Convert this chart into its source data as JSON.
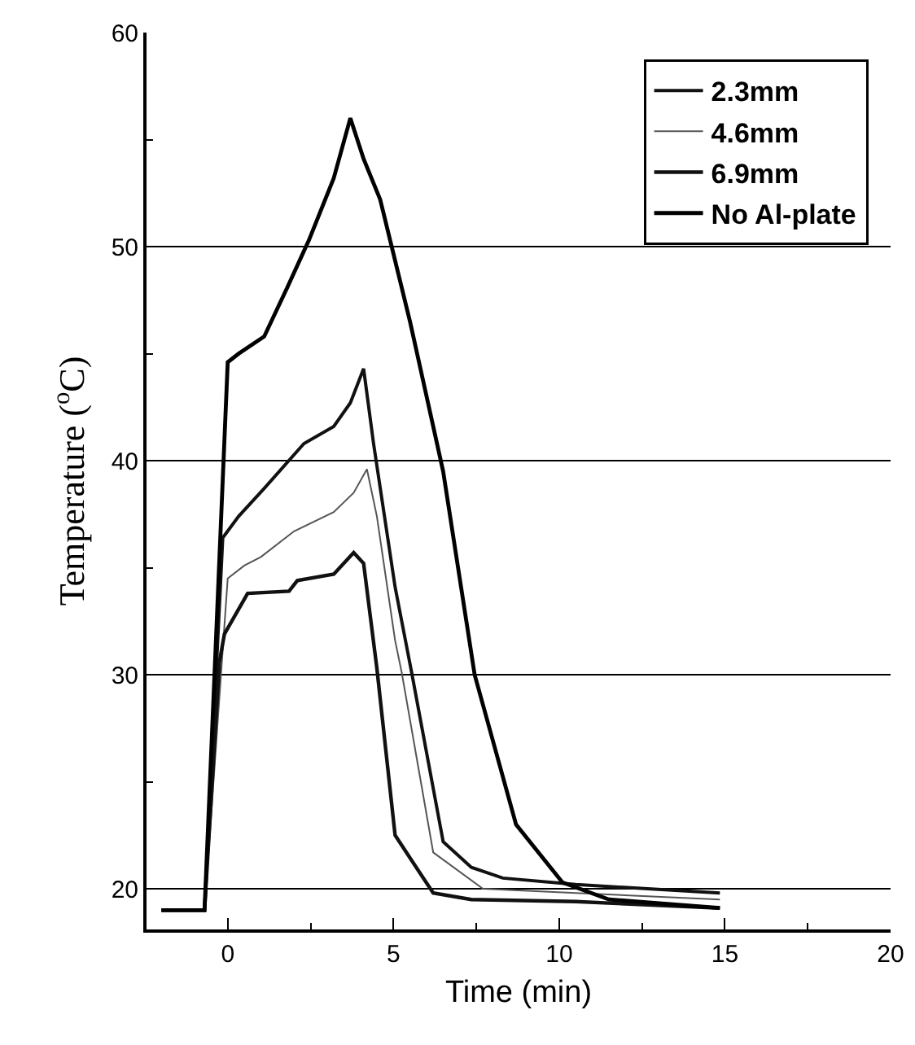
{
  "chart_data": {
    "type": "line",
    "xlabel": "Time (min)",
    "ylabel": "Temperature ($^{o}$C)",
    "xlim": [
      -2.45,
      20
    ],
    "xticks": [
      0,
      5,
      10,
      15,
      20
    ],
    "ylim": [
      18.1,
      60
    ],
    "yticks": [
      20,
      30,
      40,
      50,
      60
    ],
    "grid": "y",
    "legend": "top right",
    "marker": "none",
    "line_style": "solid",
    "series": [
      {
        "name": "2.3mm",
        "color": "#111111",
        "x": [
          -2,
          -0.7,
          -0.15,
          0.33,
          1.1,
          2.3,
          3.2,
          3.7,
          4.1,
          4.4,
          5.05,
          5.55,
          6.5,
          7.35,
          8.3,
          10.5,
          14.85
        ],
        "values": [
          19,
          19,
          36.4,
          37.4,
          38.7,
          40.8,
          41.6,
          42.7,
          44.3,
          40.8,
          34.1,
          30.1,
          22.2,
          21,
          20.5,
          20.2,
          19.8
        ]
      },
      {
        "name": "4.6mm",
        "color": "#555555",
        "x": [
          -2,
          -0.7,
          0,
          0.5,
          1,
          2,
          3.2,
          3.8,
          4.2,
          4.5,
          5.05,
          5.25,
          6.2,
          7.7,
          10.5,
          14.85
        ],
        "values": [
          19,
          19,
          34.5,
          35.1,
          35.5,
          36.7,
          37.6,
          38.5,
          39.6,
          37.4,
          31.6,
          30.1,
          21.7,
          20,
          19.8,
          19.5
        ]
      },
      {
        "name": "6.9mm",
        "color": "#111111",
        "x": [
          -2,
          -0.7,
          -0.25,
          -0.1,
          0.6,
          1.85,
          2.1,
          3.2,
          3.8,
          4.1,
          4.5,
          5.05,
          6.2,
          7.35,
          10.5,
          14.85
        ],
        "values": [
          19,
          19,
          30.6,
          31.9,
          33.8,
          33.9,
          34.4,
          34.7,
          35.7,
          35.2,
          30.3,
          22.5,
          19.8,
          19.5,
          19.4,
          19.1
        ]
      },
      {
        "name": "No Al-plate",
        "color": "#000000",
        "x": [
          -2,
          -0.7,
          0,
          0.33,
          1.1,
          1.8,
          2.45,
          3.2,
          3.7,
          4.1,
          4.6,
          5.5,
          6.5,
          7.45,
          8.7,
          10.1,
          11.5,
          14.85
        ],
        "values": [
          19,
          19,
          44.6,
          45,
          45.8,
          48.1,
          50.3,
          53.2,
          56,
          54.1,
          52.2,
          46.5,
          39.5,
          30,
          23,
          20.3,
          19.5,
          19.1
        ]
      }
    ]
  }
}
